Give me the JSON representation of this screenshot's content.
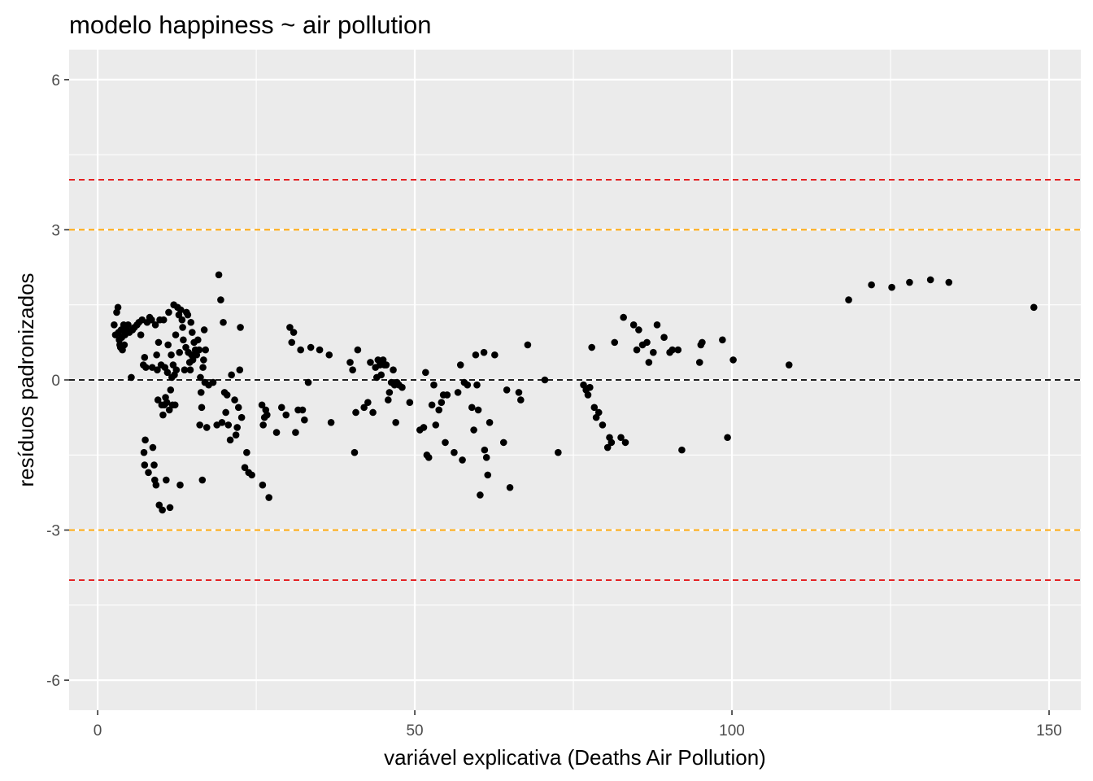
{
  "chart_data": {
    "type": "scatter",
    "title": "modelo happiness ~ air pollution",
    "xlabel": "variável explicativa (Deaths Air Pollution)",
    "ylabel": "resíduos padronizados",
    "xlim": [
      -4.5,
      155
    ],
    "ylim": [
      -6.6,
      6.6
    ],
    "x_ticks": [
      0,
      50,
      100,
      150
    ],
    "x_tick_labels": [
      "0",
      "50",
      "100",
      "150"
    ],
    "y_ticks": [
      -6,
      -3,
      0,
      3,
      6
    ],
    "y_tick_labels": [
      "-6",
      "-3",
      "0",
      "3",
      "6"
    ],
    "grid": true,
    "legend": "none",
    "reference_lines": [
      {
        "y": 4,
        "color": "#e41a1c",
        "style": "dashed"
      },
      {
        "y": 3,
        "color": "#ffa500",
        "style": "dashed"
      },
      {
        "y": 0,
        "color": "#000000",
        "style": "dashed"
      },
      {
        "y": -3,
        "color": "#ffa500",
        "style": "dashed"
      },
      {
        "y": -4,
        "color": "#e41a1c",
        "style": "dashed"
      }
    ],
    "colors": {
      "panel": "#ebebeb",
      "grid": "#ffffff",
      "points": "#000000"
    },
    "points": [
      [
        2.6,
        1.1
      ],
      [
        2.8,
        0.9
      ],
      [
        3.0,
        1.35
      ],
      [
        3.2,
        1.45
      ],
      [
        3.3,
        0.95
      ],
      [
        3.4,
        0.8
      ],
      [
        3.5,
        0.7
      ],
      [
        3.6,
        0.65
      ],
      [
        3.7,
        1.0
      ],
      [
        3.8,
        0.85
      ],
      [
        3.9,
        0.6
      ],
      [
        4.0,
        1.0
      ],
      [
        4.1,
        1.1
      ],
      [
        4.2,
        0.7
      ],
      [
        4.3,
        0.9
      ],
      [
        4.4,
        1.05
      ],
      [
        4.6,
        1.0
      ],
      [
        4.8,
        1.1
      ],
      [
        5.0,
        0.95
      ],
      [
        5.3,
        0.05
      ],
      [
        5.5,
        1.0
      ],
      [
        5.8,
        1.05
      ],
      [
        6.2,
        1.1
      ],
      [
        6.5,
        1.15
      ],
      [
        6.8,
        0.9
      ],
      [
        7.0,
        1.2
      ],
      [
        7.2,
        0.3
      ],
      [
        7.4,
        0.45
      ],
      [
        7.6,
        0.25
      ],
      [
        7.5,
        -1.2
      ],
      [
        7.3,
        -1.45
      ],
      [
        7.4,
        -1.7
      ],
      [
        7.8,
        1.15
      ],
      [
        8.0,
        -1.85
      ],
      [
        8.2,
        1.25
      ],
      [
        8.5,
        1.2
      ],
      [
        8.6,
        0.25
      ],
      [
        8.7,
        -1.35
      ],
      [
        8.9,
        -1.7
      ],
      [
        9.0,
        -2.0
      ],
      [
        9.1,
        1.1
      ],
      [
        9.2,
        -2.1
      ],
      [
        9.3,
        0.5
      ],
      [
        9.4,
        0.2
      ],
      [
        9.5,
        -0.4
      ],
      [
        9.6,
        0.75
      ],
      [
        9.7,
        -2.5
      ],
      [
        9.8,
        1.2
      ],
      [
        10.0,
        0.3
      ],
      [
        10.1,
        -0.5
      ],
      [
        10.2,
        -2.6
      ],
      [
        10.3,
        -0.7
      ],
      [
        10.4,
        1.2
      ],
      [
        10.5,
        -0.5
      ],
      [
        10.6,
        0.25
      ],
      [
        10.7,
        -0.35
      ],
      [
        10.8,
        -2.0
      ],
      [
        10.9,
        -0.45
      ],
      [
        11.0,
        0.15
      ],
      [
        11.1,
        0.7
      ],
      [
        11.2,
        1.35
      ],
      [
        11.3,
        -0.6
      ],
      [
        11.4,
        -2.55
      ],
      [
        11.5,
        -0.2
      ],
      [
        11.6,
        0.5
      ],
      [
        11.7,
        0.05
      ],
      [
        11.8,
        -0.5
      ],
      [
        11.9,
        0.3
      ],
      [
        12.0,
        1.5
      ],
      [
        12.1,
        0.1
      ],
      [
        12.2,
        -0.5
      ],
      [
        12.3,
        0.9
      ],
      [
        12.4,
        0.2
      ],
      [
        12.6,
        1.45
      ],
      [
        12.8,
        1.3
      ],
      [
        12.9,
        0.55
      ],
      [
        13.1,
        1.4
      ],
      [
        13.3,
        1.2
      ],
      [
        13.0,
        -2.1
      ],
      [
        13.4,
        1.05
      ],
      [
        13.5,
        0.8
      ],
      [
        13.7,
        0.2
      ],
      [
        13.9,
        0.65
      ],
      [
        14.0,
        1.35
      ],
      [
        14.2,
        1.3
      ],
      [
        14.3,
        0.55
      ],
      [
        14.5,
        0.35
      ],
      [
        14.6,
        0.2
      ],
      [
        14.7,
        1.15
      ],
      [
        14.8,
        0.5
      ],
      [
        14.9,
        0.95
      ],
      [
        15.0,
        0.4
      ],
      [
        15.2,
        0.75
      ],
      [
        15.4,
        0.6
      ],
      [
        15.6,
        0.5
      ],
      [
        15.8,
        0.8
      ],
      [
        16.0,
        0.6
      ],
      [
        16.1,
        -0.9
      ],
      [
        16.2,
        0.05
      ],
      [
        16.3,
        -0.25
      ],
      [
        16.4,
        -0.55
      ],
      [
        16.5,
        -2.0
      ],
      [
        16.6,
        0.25
      ],
      [
        16.7,
        0.4
      ],
      [
        16.8,
        1.0
      ],
      [
        16.9,
        -0.05
      ],
      [
        17.0,
        0.6
      ],
      [
        17.2,
        -0.95
      ],
      [
        17.5,
        -0.1
      ],
      [
        18.2,
        -0.05
      ],
      [
        18.8,
        -0.9
      ],
      [
        19.1,
        2.1
      ],
      [
        19.4,
        1.6
      ],
      [
        19.6,
        -0.85
      ],
      [
        19.8,
        1.15
      ],
      [
        20.0,
        -0.25
      ],
      [
        20.2,
        -0.65
      ],
      [
        20.4,
        -0.3
      ],
      [
        20.6,
        -0.9
      ],
      [
        20.9,
        -1.2
      ],
      [
        21.1,
        0.1
      ],
      [
        21.6,
        -0.4
      ],
      [
        21.8,
        -1.1
      ],
      [
        22.0,
        -0.95
      ],
      [
        22.2,
        -0.55
      ],
      [
        22.4,
        0.2
      ],
      [
        22.5,
        1.05
      ],
      [
        22.7,
        -0.75
      ],
      [
        23.2,
        -1.75
      ],
      [
        23.5,
        -1.45
      ],
      [
        23.8,
        -1.85
      ],
      [
        24.3,
        -1.9
      ],
      [
        25.9,
        -0.5
      ],
      [
        26.1,
        -0.9
      ],
      [
        26.0,
        -2.1
      ],
      [
        26.3,
        -0.75
      ],
      [
        26.5,
        -0.6
      ],
      [
        26.7,
        -0.7
      ],
      [
        27.0,
        -2.35
      ],
      [
        28.2,
        -1.05
      ],
      [
        29.0,
        -0.55
      ],
      [
        29.7,
        -0.7
      ],
      [
        30.3,
        1.05
      ],
      [
        30.6,
        0.75
      ],
      [
        30.9,
        0.95
      ],
      [
        31.2,
        -1.05
      ],
      [
        31.6,
        -0.6
      ],
      [
        32.0,
        0.6
      ],
      [
        32.3,
        -0.6
      ],
      [
        32.6,
        -0.8
      ],
      [
        33.2,
        -0.05
      ],
      [
        33.6,
        0.65
      ],
      [
        35.0,
        0.6
      ],
      [
        36.5,
        0.5
      ],
      [
        36.8,
        -0.85
      ],
      [
        39.8,
        0.35
      ],
      [
        40.2,
        0.2
      ],
      [
        40.5,
        -1.45
      ],
      [
        40.7,
        -0.65
      ],
      [
        41.0,
        0.6
      ],
      [
        42.0,
        -0.55
      ],
      [
        42.6,
        -0.45
      ],
      [
        43.0,
        0.35
      ],
      [
        43.4,
        -0.65
      ],
      [
        43.8,
        0.25
      ],
      [
        44.0,
        0.05
      ],
      [
        44.2,
        0.4
      ],
      [
        44.5,
        0.3
      ],
      [
        44.7,
        0.1
      ],
      [
        45.0,
        0.4
      ],
      [
        45.2,
        0.3
      ],
      [
        45.5,
        0.3
      ],
      [
        45.8,
        -0.4
      ],
      [
        46.0,
        -0.25
      ],
      [
        46.3,
        -0.05
      ],
      [
        46.6,
        0.2
      ],
      [
        46.8,
        -0.1
      ],
      [
        47.0,
        -0.85
      ],
      [
        47.2,
        -0.05
      ],
      [
        47.5,
        -0.1
      ],
      [
        48.0,
        -0.15
      ],
      [
        49.2,
        -0.45
      ],
      [
        50.8,
        -1.0
      ],
      [
        51.4,
        -0.95
      ],
      [
        51.7,
        0.15
      ],
      [
        51.9,
        -1.5
      ],
      [
        52.2,
        -1.55
      ],
      [
        52.7,
        -0.5
      ],
      [
        53.0,
        -0.1
      ],
      [
        53.3,
        -0.9
      ],
      [
        53.8,
        -0.6
      ],
      [
        54.2,
        -0.45
      ],
      [
        54.5,
        -0.3
      ],
      [
        54.8,
        -1.25
      ],
      [
        55.1,
        -0.3
      ],
      [
        56.2,
        -1.45
      ],
      [
        56.8,
        -0.25
      ],
      [
        57.2,
        0.3
      ],
      [
        57.5,
        -1.6
      ],
      [
        57.8,
        -0.05
      ],
      [
        58.3,
        -0.1
      ],
      [
        59.0,
        -0.55
      ],
      [
        59.3,
        -1.0
      ],
      [
        59.6,
        0.5
      ],
      [
        59.8,
        -0.1
      ],
      [
        60.0,
        -0.6
      ],
      [
        60.3,
        -2.3
      ],
      [
        60.9,
        0.55
      ],
      [
        61.0,
        -1.4
      ],
      [
        61.3,
        -1.55
      ],
      [
        61.5,
        -1.9
      ],
      [
        61.8,
        -0.85
      ],
      [
        62.6,
        0.5
      ],
      [
        64.0,
        -1.25
      ],
      [
        64.5,
        -0.2
      ],
      [
        65.0,
        -2.15
      ],
      [
        66.4,
        -0.25
      ],
      [
        66.7,
        -0.4
      ],
      [
        67.8,
        0.7
      ],
      [
        70.5,
        0.0
      ],
      [
        72.6,
        -1.45
      ],
      [
        76.6,
        -0.1
      ],
      [
        77.0,
        -0.2
      ],
      [
        77.3,
        -0.3
      ],
      [
        77.6,
        -0.15
      ],
      [
        77.9,
        0.65
      ],
      [
        78.3,
        -0.55
      ],
      [
        78.6,
        -0.75
      ],
      [
        79.0,
        -0.65
      ],
      [
        79.6,
        -0.9
      ],
      [
        80.4,
        -1.35
      ],
      [
        80.7,
        -1.15
      ],
      [
        81.0,
        -1.25
      ],
      [
        81.5,
        0.75
      ],
      [
        82.5,
        -1.15
      ],
      [
        82.9,
        1.25
      ],
      [
        83.2,
        -1.25
      ],
      [
        84.5,
        1.1
      ],
      [
        85.0,
        0.6
      ],
      [
        85.3,
        1.0
      ],
      [
        85.9,
        0.7
      ],
      [
        86.6,
        0.75
      ],
      [
        86.9,
        0.35
      ],
      [
        87.6,
        0.55
      ],
      [
        88.2,
        1.1
      ],
      [
        89.3,
        0.85
      ],
      [
        90.2,
        0.55
      ],
      [
        90.6,
        0.6
      ],
      [
        91.5,
        0.6
      ],
      [
        92.1,
        -1.4
      ],
      [
        94.9,
        0.35
      ],
      [
        95.1,
        0.7
      ],
      [
        95.3,
        0.75
      ],
      [
        98.5,
        0.8
      ],
      [
        99.3,
        -1.15
      ],
      [
        100.2,
        0.4
      ],
      [
        109.0,
        0.3
      ],
      [
        118.4,
        1.6
      ],
      [
        122.0,
        1.9
      ],
      [
        125.2,
        1.85
      ],
      [
        128.0,
        1.95
      ],
      [
        131.3,
        2.0
      ],
      [
        134.2,
        1.95
      ],
      [
        147.6,
        1.45
      ]
    ]
  }
}
